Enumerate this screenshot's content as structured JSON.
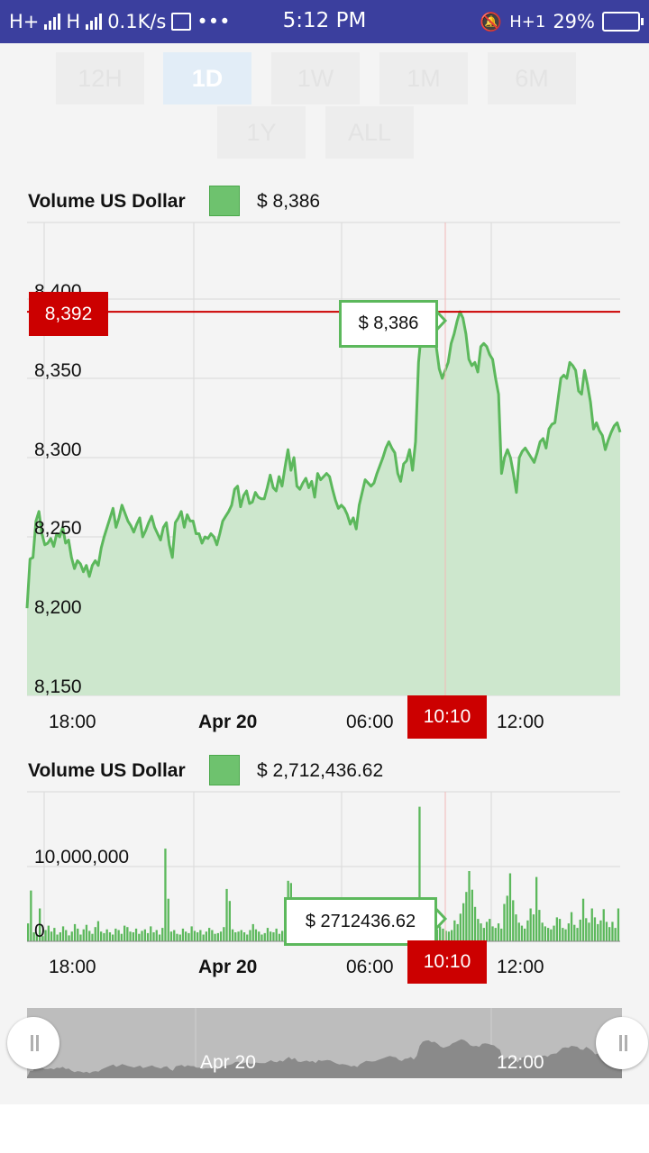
{
  "status_bar": {
    "network1": "H+",
    "network2": "H",
    "speed": "0.1K/s",
    "more": "•••",
    "time": "5:12 PM",
    "network3": "H+1",
    "battery": "29%"
  },
  "range_selector": {
    "buttons": [
      "12H",
      "1D",
      "1W",
      "1M",
      "6M",
      "1Y",
      "ALL"
    ],
    "selected": "1D"
  },
  "price_chart": {
    "legend_label": "Volume US Dollar",
    "legend_value": "$ 8,386",
    "y_ticks": [
      "8,400",
      "8,350",
      "8,300",
      "8,250",
      "8,200",
      "8,150"
    ],
    "x_ticks": [
      "18:00",
      "Apr 20",
      "06:00",
      "12:00"
    ],
    "crosshair_price": "8,392",
    "crosshair_time": "10:10",
    "tooltip": "$ 8,386"
  },
  "volume_chart": {
    "legend_label": "Volume US Dollar",
    "legend_value": "$ 2,712,436.62",
    "y_ticks": [
      "10,000,000",
      "0"
    ],
    "x_ticks": [
      "18:00",
      "Apr 20",
      "06:00",
      "12:00"
    ],
    "crosshair_time": "10:10",
    "tooltip": "$ 2712436.62"
  },
  "navigator": {
    "labels": [
      "Apr 20",
      "12:00"
    ]
  },
  "colors": {
    "accent": "#5cb85c",
    "area": "#cde7cd",
    "crosshair": "#cc0000",
    "status_bar": "#3b3f9e"
  },
  "chart_data": [
    {
      "type": "area",
      "title": "",
      "legend": [
        "Volume US Dollar"
      ],
      "x_unit": "hour from 18:00 Apr 19",
      "x": [
        0,
        1,
        2,
        3,
        4,
        5,
        6,
        7,
        8,
        9,
        10,
        11,
        12,
        13,
        14,
        15,
        16,
        17,
        18,
        19,
        20,
        21,
        22,
        23,
        24,
        25,
        26,
        27,
        28,
        29,
        30,
        31,
        32,
        33,
        34,
        35,
        36,
        37,
        38,
        39,
        40,
        41,
        42,
        43,
        44,
        45,
        46,
        47,
        48,
        49,
        50,
        51,
        52,
        53,
        54,
        55,
        56,
        57,
        58,
        59,
        60,
        61,
        62,
        63,
        64,
        65,
        66,
        67,
        68,
        69,
        70,
        71,
        72,
        73,
        74,
        75,
        76,
        77,
        78,
        79,
        80,
        81,
        82,
        83,
        84,
        85,
        86,
        87,
        88,
        89,
        90,
        91,
        92,
        93,
        94,
        95,
        96,
        97,
        98,
        99,
        100,
        101,
        102,
        103,
        104,
        105,
        106,
        107,
        108,
        109,
        110,
        111,
        112,
        113,
        114,
        115,
        116,
        117,
        118,
        119,
        120,
        121,
        122,
        123,
        124,
        125,
        126,
        127,
        128,
        129,
        130,
        131,
        132,
        133,
        134,
        135,
        136,
        137,
        138,
        139,
        140,
        141,
        142,
        143,
        144,
        145,
        146,
        147,
        148,
        149,
        150,
        151,
        152,
        153,
        154,
        155,
        156,
        157,
        158,
        159,
        160,
        161,
        162,
        163,
        164,
        165,
        166,
        167,
        168,
        169,
        170,
        171,
        172,
        173,
        174,
        175,
        176,
        177,
        178,
        179,
        180,
        181,
        182,
        183,
        184,
        185,
        186,
        187,
        188,
        189,
        190,
        191,
        192,
        193,
        194,
        195,
        196,
        197,
        198,
        199,
        200
      ],
      "x_note": "x = minutes/6 offset index; series values listed below",
      "series": [
        {
          "name": "Volume US Dollar",
          "values": [
            8205,
            8236,
            8237,
            8260,
            8266,
            8252,
            8245,
            8246,
            8249,
            8244,
            8252,
            8250,
            8256,
            8246,
            8248,
            8237,
            8230,
            8235,
            8233,
            8228,
            8232,
            8225,
            8232,
            8235,
            8232,
            8243,
            8250,
            8256,
            8262,
            8268,
            8256,
            8262,
            8270,
            8265,
            8260,
            8257,
            8253,
            8258,
            8262,
            8250,
            8254,
            8259,
            8263,
            8256,
            8252,
            8248,
            8256,
            8259,
            8245,
            8237,
            8259,
            8262,
            8266,
            8256,
            8264,
            8260,
            8260,
            8252,
            8252,
            8246,
            8250,
            8249,
            8252,
            8250,
            8245,
            8252,
            8260,
            8263,
            8266,
            8270,
            8280,
            8282,
            8269,
            8276,
            8279,
            8271,
            8272,
            8278,
            8275,
            8274,
            8274,
            8281,
            8289,
            8281,
            8279,
            8288,
            8282,
            8294,
            8305,
            8292,
            8300,
            8282,
            8280,
            8284,
            8287,
            8281,
            8285,
            8275,
            8290,
            8286,
            8288,
            8290,
            8288,
            8280,
            8273,
            8268,
            8270,
            8268,
            8264,
            8258,
            8262,
            8255,
            8270,
            8278,
            8286,
            8284,
            8282,
            8284,
            8290,
            8295,
            8300,
            8306,
            8310,
            8306,
            8303,
            8290,
            8285,
            8296,
            8298,
            8305,
            8292,
            8310,
            8360,
            8380,
            8386,
            8387,
            8378,
            8380,
            8370,
            8356,
            8350,
            8355,
            8360,
            8372,
            8378,
            8386,
            8392,
            8388,
            8378,
            8362,
            8358,
            8360,
            8354,
            8370,
            8372,
            8370,
            8365,
            8362,
            8350,
            8340,
            8290,
            8300,
            8305,
            8300,
            8290,
            8278,
            8300,
            8304,
            8306,
            8303,
            8300,
            8297,
            8303,
            8310,
            8312,
            8306,
            8318,
            8321,
            8322,
            8336,
            8350,
            8352,
            8350,
            8360,
            8358,
            8355,
            8342,
            8340,
            8355,
            8346,
            8335,
            8318,
            8322,
            8317,
            8314,
            8305,
            8311,
            8316,
            8320,
            8322,
            8316
          ]
        }
      ],
      "ylim": [
        8150,
        8420
      ],
      "xticks": [
        "18:00",
        "Apr 20",
        "06:00",
        "12:00"
      ],
      "yticks": [
        8150,
        8200,
        8250,
        8300,
        8350,
        8400
      ],
      "grid": true,
      "legend_position": "top-left"
    },
    {
      "type": "bar",
      "title": "",
      "legend": [
        "Volume US Dollar"
      ],
      "ylim": [
        0,
        19000000
      ],
      "yticks": [
        0,
        10000000
      ],
      "xticks": [
        "18:00",
        "Apr 20",
        "06:00",
        "12:00"
      ],
      "grid": true,
      "legend_position": "top-left",
      "series": [
        {
          "name": "Volume US Dollar",
          "values": [
            2400000,
            6800000,
            1200000,
            900000,
            4400000,
            700000,
            1500000,
            2100000,
            1300000,
            1800000,
            900000,
            1200000,
            2000000,
            1500000,
            800000,
            1300000,
            2300000,
            1700000,
            900000,
            1600000,
            2200000,
            1400000,
            1000000,
            1900000,
            2700000,
            1300000,
            1100000,
            1600000,
            1200000,
            900000,
            1700000,
            1500000,
            1000000,
            2100000,
            1900000,
            1300000,
            1200000,
            1700000,
            1000000,
            1400000,
            1600000,
            1100000,
            2000000,
            1200000,
            1500000,
            900000,
            1800000,
            12400000,
            5700000,
            1300000,
            1500000,
            1000000,
            900000,
            1700000,
            1300000,
            1100000,
            2000000,
            1400000,
            1200000,
            1500000,
            900000,
            1300000,
            1800000,
            1500000,
            1000000,
            1100000,
            1300000,
            1900000,
            7000000,
            5400000,
            1600000,
            1200000,
            1300000,
            1500000,
            1200000,
            900000,
            1500000,
            2300000,
            1600000,
            1300000,
            900000,
            1100000,
            1800000,
            1300000,
            1200000,
            1700000,
            1000000,
            1400000,
            2200000,
            8100000,
            7800000,
            1800000,
            1200000,
            1700000,
            5100000,
            1200000,
            1400000,
            2000000,
            3000000,
            1600000,
            1100000,
            2600000,
            1300000,
            4500000,
            2100000,
            1600000,
            1900000,
            1300000,
            1500000,
            1800000,
            2300000,
            1700000,
            1100000,
            900000,
            1700000,
            2900000,
            2100000,
            1600000,
            1300000,
            1200000,
            2200000,
            1800000,
            1700000,
            1300000,
            1500000,
            2000000,
            1400000,
            1200000,
            1900000,
            2200000,
            2500000,
            1900000,
            1800000,
            1500000,
            18000000,
            3300000,
            2500000,
            2100000,
            1800000,
            2200000,
            1600000,
            2000000,
            1700000,
            1400000,
            1300000,
            1500000,
            2800000,
            2300000,
            3700000,
            5100000,
            6600000,
            9400000,
            6900000,
            4600000,
            3000000,
            2400000,
            1800000,
            2600000,
            3000000,
            2000000,
            1800000,
            2400000,
            1700000,
            5000000,
            6100000,
            9100000,
            5500000,
            3600000,
            2500000,
            2100000,
            1700000,
            2800000,
            4400000,
            3600000,
            8600000,
            4200000,
            2500000,
            2000000,
            1800000,
            1600000,
            2100000,
            3200000,
            3000000,
            1800000,
            1600000,
            2400000,
            3900000,
            2200000,
            1800000,
            2900000,
            5700000,
            3100000,
            2500000,
            4400000,
            3200000,
            2300000,
            2800000,
            4300000,
            2600000,
            1900000,
            2600000,
            1800000,
            4400000
          ]
        }
      ]
    }
  ]
}
